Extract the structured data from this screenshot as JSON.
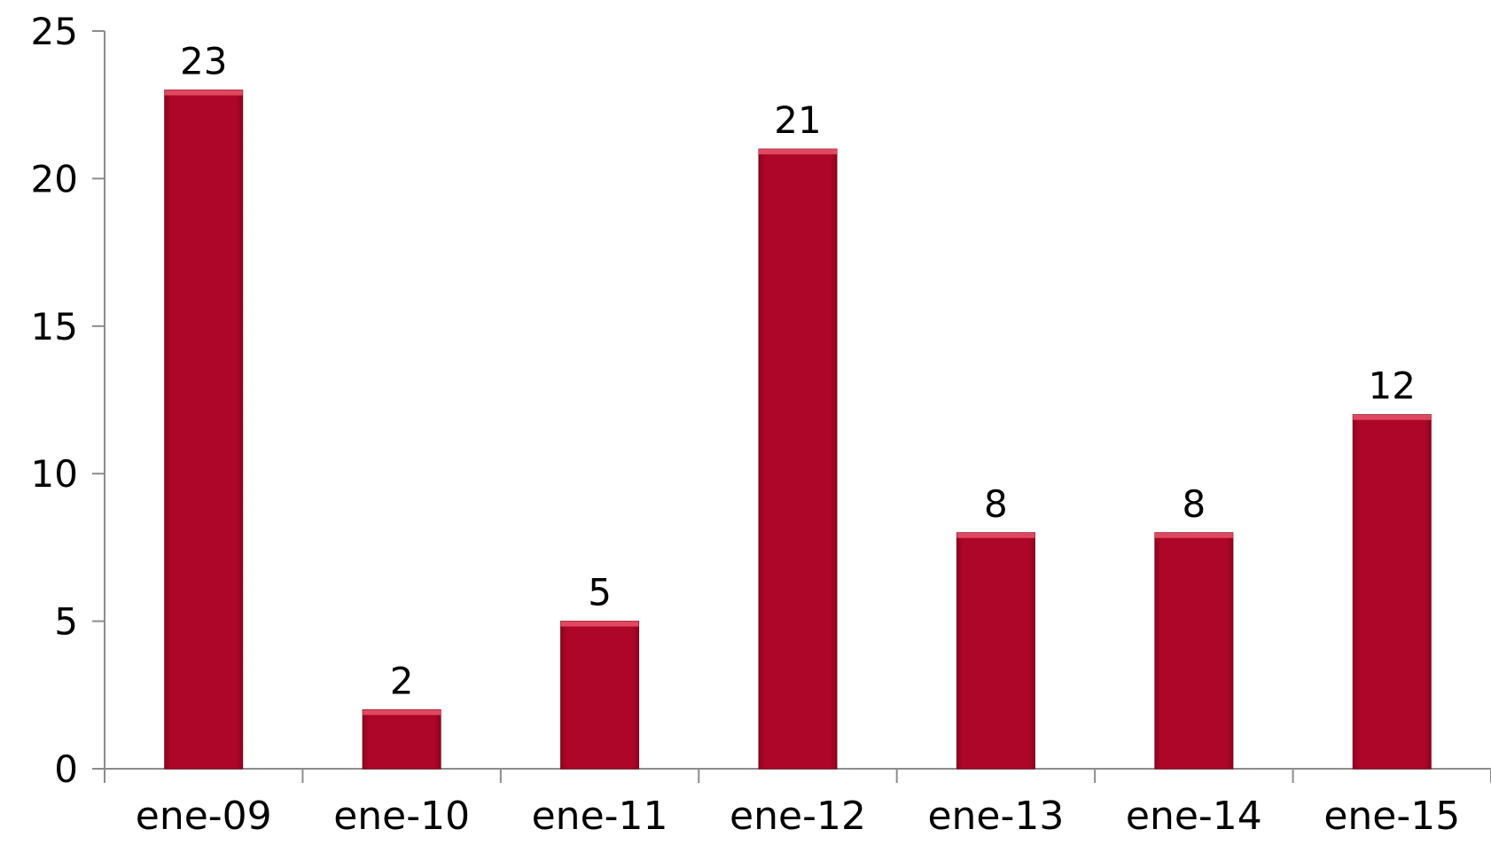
{
  "chart_data": {
    "type": "bar",
    "categories": [
      "ene-09",
      "ene-10",
      "ene-11",
      "ene-12",
      "ene-13",
      "ene-14",
      "ene-15"
    ],
    "values": [
      23,
      2,
      5,
      21,
      8,
      8,
      12
    ],
    "data_labels": [
      "23",
      "2",
      "5",
      "21",
      "8",
      "8",
      "12"
    ],
    "y_ticks": [
      "0",
      "5",
      "10",
      "15",
      "20",
      "25"
    ],
    "ylim": [
      0,
      25
    ],
    "grid": false,
    "legend": "none",
    "title": "",
    "xlabel": "",
    "ylabel": "",
    "colors": {
      "bar": "#ad0628",
      "bar_top": "#e0485f",
      "bar_edge": "#7d0018",
      "axis": "#8c8c8c"
    }
  }
}
